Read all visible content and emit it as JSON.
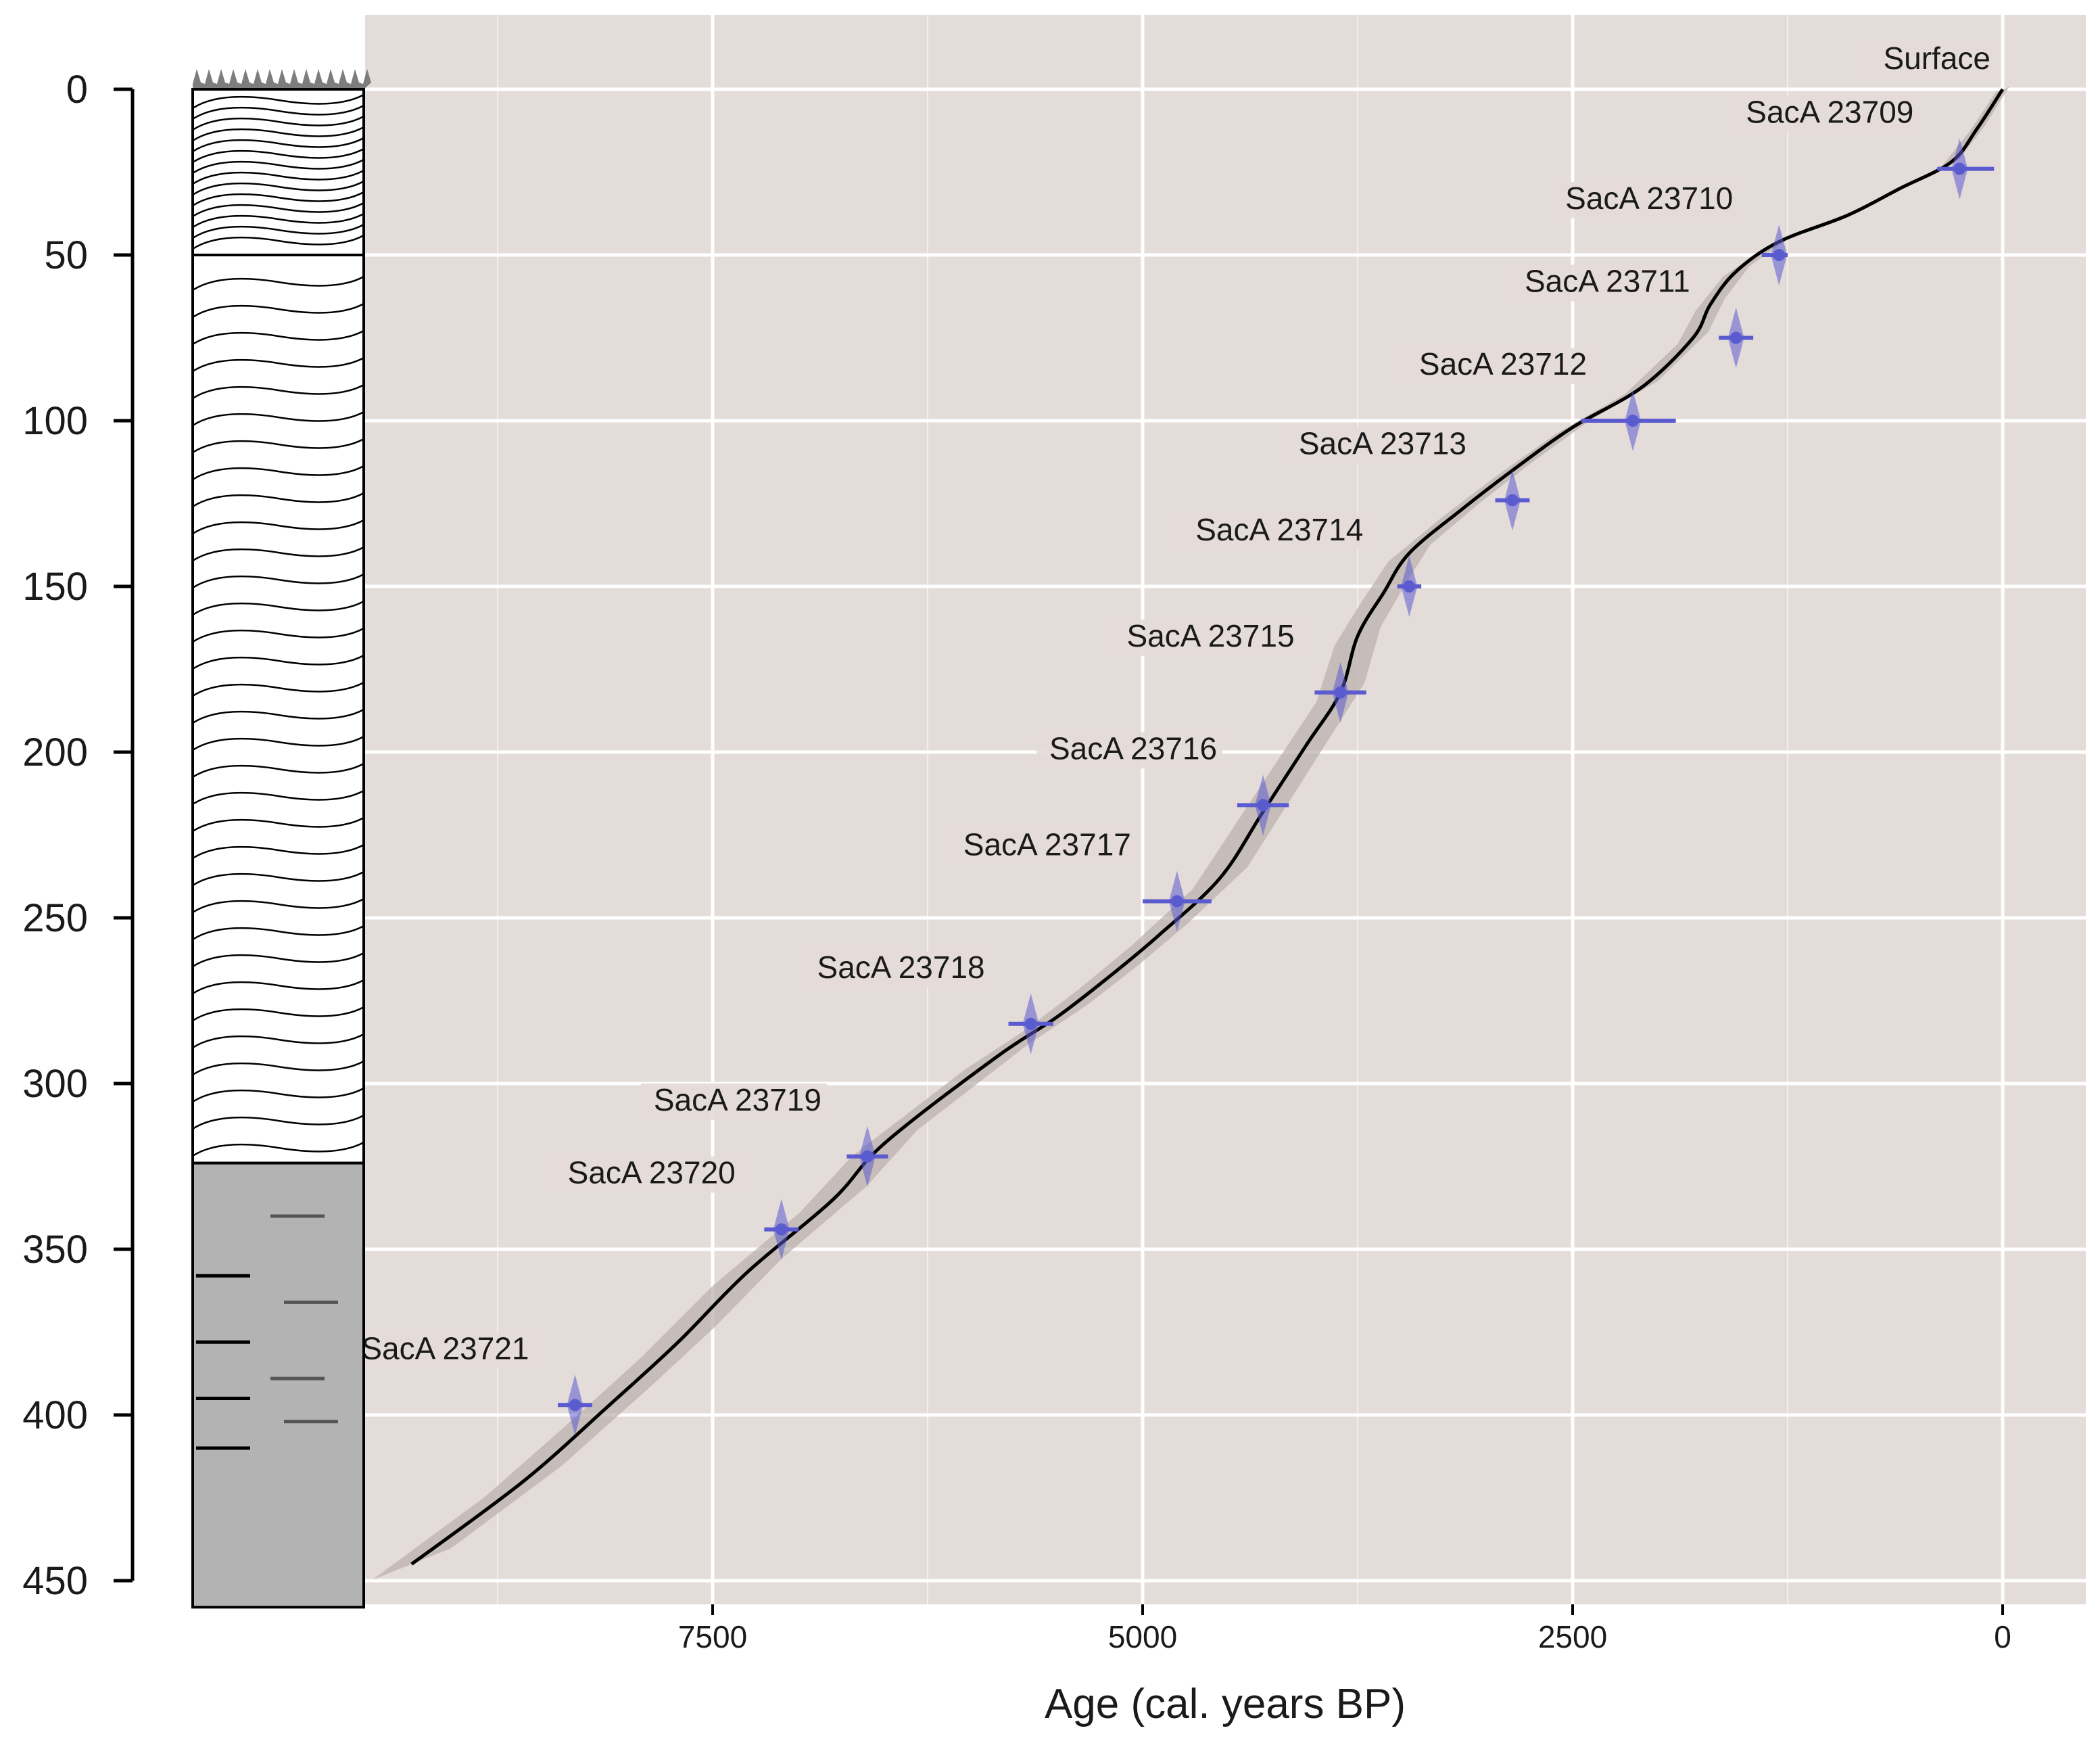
{
  "chart_data": {
    "type": "line",
    "xlabel": "Age (cal. years BP)",
    "ylabel": "",
    "xlim": [
      10500,
      -500
    ],
    "ylim": [
      0,
      450
    ],
    "x_reversed": true,
    "y_reversed": true,
    "grid": true,
    "x_ticks": [
      7500,
      5000,
      2500,
      0
    ],
    "y_ticks": [
      0,
      50,
      100,
      150,
      200,
      250,
      300,
      350,
      400,
      450
    ],
    "age_depth_model": {
      "age": [
        0,
        150,
        300,
        600,
        900,
        1300,
        1550,
        1700,
        1800,
        2100,
        2500,
        2850,
        3150,
        3450,
        3600,
        3750,
        3850,
        4050,
        4300,
        4550,
        4900,
        5200,
        5500,
        5850,
        6500,
        6800,
        7300,
        7700,
        8100,
        8600,
        9250
      ],
      "depth": [
        0,
        12,
        22,
        30,
        38,
        46,
        55,
        65,
        75,
        90,
        102,
        115,
        127,
        140,
        152,
        165,
        182,
        198,
        218,
        238,
        255,
        268,
        280,
        292,
        318,
        335,
        357,
        378,
        397,
        420,
        445
      ]
    },
    "dates": [
      {
        "label": "Surface",
        "age": 0,
        "depth": 0,
        "age_range": [
          0,
          0
        ]
      },
      {
        "label": "SacA 23709",
        "age": 250,
        "depth": 24,
        "age_range": [
          50,
          380
        ]
      },
      {
        "label": "SacA 23710",
        "age": 1300,
        "depth": 50,
        "age_range": [
          1250,
          1400
        ]
      },
      {
        "label": "SacA 23711",
        "age": 1550,
        "depth": 75,
        "age_range": [
          1450,
          1650
        ]
      },
      {
        "label": "SacA 23712",
        "age": 2150,
        "depth": 100,
        "age_range": [
          1900,
          2450
        ]
      },
      {
        "label": "SacA 23713",
        "age": 2850,
        "depth": 124,
        "age_range": [
          2750,
          2950
        ]
      },
      {
        "label": "SacA 23714",
        "age": 3450,
        "depth": 150,
        "age_range": [
          3380,
          3520
        ]
      },
      {
        "label": "SacA 23715",
        "age": 3850,
        "depth": 182,
        "age_range": [
          3700,
          4000
        ]
      },
      {
        "label": "SacA 23716",
        "age": 4300,
        "depth": 216,
        "age_range": [
          4150,
          4450
        ]
      },
      {
        "label": "SacA 23717",
        "age": 4800,
        "depth": 245,
        "age_range": [
          4600,
          5000
        ]
      },
      {
        "label": "SacA 23718",
        "age": 5650,
        "depth": 282,
        "age_range": [
          5520,
          5780
        ]
      },
      {
        "label": "SacA 23719",
        "age": 6600,
        "depth": 322,
        "age_range": [
          6480,
          6720
        ]
      },
      {
        "label": "SacA 23720",
        "age": 7100,
        "depth": 344,
        "age_range": [
          7000,
          7200
        ]
      },
      {
        "label": "SacA 23721",
        "age": 8300,
        "depth": 397,
        "age_range": [
          8200,
          8400
        ]
      }
    ],
    "lithology_column": [
      {
        "unit": "fibrous peat",
        "top": 0,
        "bottom": 50
      },
      {
        "unit": "peat",
        "top": 50,
        "bottom": 324
      },
      {
        "unit": "clay",
        "top": 324,
        "bottom": 458
      }
    ]
  },
  "colors": {
    "panel_bg": "#e4dcd9",
    "grid": "#ffffff",
    "model_line": "#000000",
    "model_envelope": "#b9aeab",
    "dates": "#5b5bd0",
    "clay": "#b3b3b3"
  }
}
